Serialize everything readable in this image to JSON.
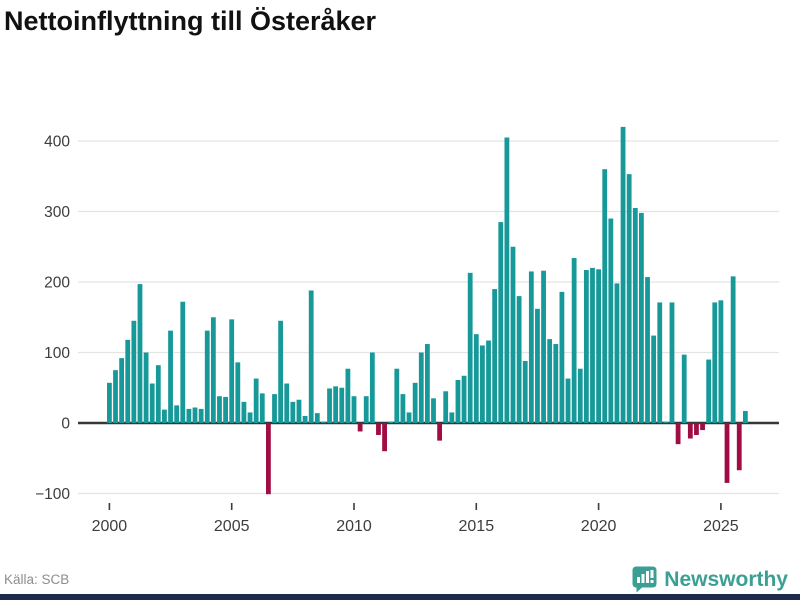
{
  "title": "Nettoinflyttning till Österåker",
  "source": "Källa: SCB",
  "branding": {
    "name": "Newsworthy",
    "icon": "newsworthy-marker-icon"
  },
  "colors": {
    "positive_bar": "#17999A",
    "negative_bar": "#A00D42",
    "gridline": "#E4E4E4",
    "zero_line": "#373737",
    "axis_text": "#3D3D3D",
    "title_text": "#111111",
    "source_text": "#8E8E8E",
    "brand_teal": "#3BA093",
    "footer_strip": "#1B2A4E"
  },
  "chart_data": {
    "type": "bar",
    "title": "Nettoinflyttning till Österåker",
    "xlabel": "",
    "ylabel": "",
    "period": "quarterly",
    "start": "2000-Q1",
    "end": "2026-Q1",
    "ylim": [
      -110,
      435
    ],
    "grid": true,
    "y_ticks": [
      -100,
      0,
      100,
      200,
      300,
      400
    ],
    "y_tick_labels": [
      "−100",
      "0",
      "100",
      "200",
      "300",
      "400"
    ],
    "x_tick_years": [
      2000,
      2005,
      2010,
      2015,
      2020,
      2025
    ],
    "x_tick_labels": [
      "2000",
      "2005",
      "2010",
      "2015",
      "2020",
      "2025"
    ],
    "values": [
      57,
      75,
      92,
      118,
      145,
      197,
      100,
      56,
      82,
      19,
      131,
      25,
      172,
      20,
      22,
      20,
      131,
      150,
      38,
      37,
      147,
      86,
      30,
      15,
      63,
      42,
      -101,
      41,
      145,
      56,
      30,
      33,
      10,
      188,
      14,
      2,
      49,
      52,
      50,
      77,
      38,
      -12,
      38,
      100,
      -17,
      -40,
      2,
      77,
      41,
      15,
      57,
      100,
      112,
      35,
      -25,
      45,
      15,
      61,
      67,
      213,
      126,
      110,
      117,
      190,
      285,
      405,
      250,
      180,
      88,
      215,
      162,
      216,
      119,
      112,
      186,
      63,
      234,
      77,
      217,
      220,
      218,
      360,
      290,
      198,
      420,
      353,
      305,
      298,
      207,
      124,
      171,
      2,
      171,
      -30,
      97,
      -22,
      -17,
      -10,
      90,
      171,
      174,
      -85,
      208,
      -67,
      17
    ]
  }
}
